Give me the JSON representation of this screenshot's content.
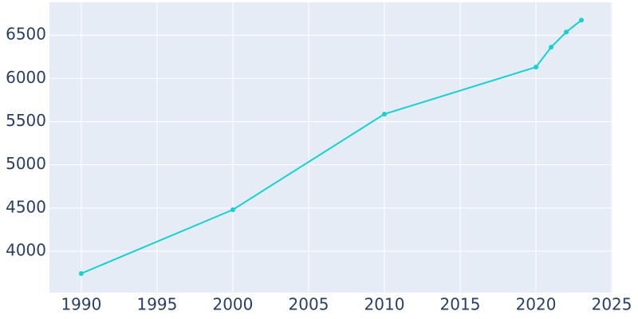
{
  "chart_data": {
    "type": "line",
    "x": [
      1990,
      2000,
      2010,
      2020,
      2021,
      2022,
      2023
    ],
    "series": [
      {
        "color": "#17d1d1",
        "values": [
          3742,
          4480,
          5587,
          6131,
          6362,
          6537,
          6675
        ]
      }
    ],
    "xlim": [
      1987.9,
      2025.05
    ],
    "xticks": [
      1990,
      1995,
      2000,
      2005,
      2010,
      2015,
      2020,
      2025
    ],
    "ylim": [
      3520,
      6880
    ],
    "yticks": [
      4000,
      4500,
      5000,
      5500,
      6000,
      6500
    ],
    "grid": true
  }
}
